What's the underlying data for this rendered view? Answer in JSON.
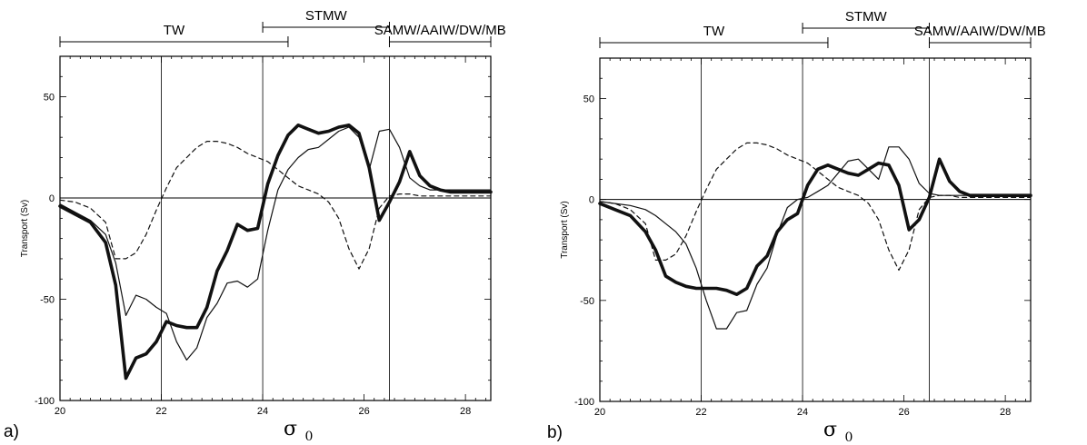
{
  "chart_data": [
    {
      "type": "line",
      "panel_label": "a)",
      "xlabel": "σ",
      "xlabel_sub": "0",
      "ylabel": "Transport (Sv)",
      "xlim": [
        20,
        28.5
      ],
      "ylim": [
        -100,
        70
      ],
      "xticks": [
        20,
        22,
        24,
        26,
        28
      ],
      "yticks": [
        -100,
        -50,
        0,
        50
      ],
      "grid_x": [
        22,
        24,
        26.5
      ],
      "zero_line": true,
      "water_masses": [
        {
          "label": "TW",
          "from": 20,
          "to": 24.5
        },
        {
          "label": "STMW",
          "from": 24,
          "to": 26.5
        },
        {
          "label": "SAMW/AAIW/DW/MB",
          "from": 26.5,
          "to": 28.5
        }
      ],
      "series": [
        {
          "style": "thick",
          "x": [
            20,
            20.3,
            20.6,
            20.9,
            21.1,
            21.3,
            21.5,
            21.7,
            21.9,
            22.1,
            22.3,
            22.5,
            22.7,
            22.9,
            23.1,
            23.3,
            23.5,
            23.7,
            23.9,
            24.1,
            24.3,
            24.5,
            24.7,
            24.9,
            25.1,
            25.3,
            25.5,
            25.7,
            25.9,
            26.1,
            26.3,
            26.5,
            26.7,
            26.9,
            27.1,
            27.3,
            27.5,
            27.7,
            27.9,
            28.1,
            28.3,
            28.5
          ],
          "y": [
            -4,
            -8,
            -12,
            -22,
            -43,
            -89,
            -79,
            -77,
            -71,
            -61,
            -63,
            -64,
            -64,
            -54,
            -36,
            -26,
            -13,
            -16,
            -15,
            7,
            21,
            31,
            36,
            34,
            32,
            33,
            35,
            36,
            32,
            15,
            -11,
            -2,
            8,
            23,
            11,
            6,
            4,
            3,
            3,
            3,
            3,
            3
          ]
        },
        {
          "style": "thin",
          "x": [
            20,
            20.3,
            20.6,
            20.9,
            21.1,
            21.3,
            21.5,
            21.7,
            21.9,
            22.1,
            22.3,
            22.5,
            22.7,
            22.9,
            23.1,
            23.3,
            23.5,
            23.7,
            23.9,
            24.1,
            24.3,
            24.5,
            24.7,
            24.9,
            25.1,
            25.3,
            25.5,
            25.7,
            25.9,
            26.1,
            26.3,
            26.5,
            26.7,
            26.9,
            27.1,
            27.3,
            27.5,
            27.7,
            27.9,
            28.1,
            28.3,
            28.5
          ],
          "y": [
            -3,
            -7,
            -11,
            -18,
            -32,
            -58,
            -48,
            -50,
            -54,
            -57,
            -71,
            -80,
            -74,
            -59,
            -52,
            -42,
            -41,
            -44,
            -40,
            -16,
            4,
            14,
            20,
            24,
            25,
            29,
            33,
            35,
            30,
            14,
            33,
            34,
            25,
            10,
            6,
            4,
            4,
            4,
            4,
            4,
            4,
            4
          ]
        },
        {
          "style": "dashed",
          "x": [
            20,
            20.3,
            20.6,
            20.9,
            21.1,
            21.3,
            21.5,
            21.7,
            21.9,
            22.1,
            22.3,
            22.5,
            22.7,
            22.9,
            23.1,
            23.3,
            23.5,
            23.7,
            23.9,
            24.1,
            24.3,
            24.5,
            24.7,
            24.9,
            25.1,
            25.3,
            25.5,
            25.7,
            25.9,
            26.1,
            26.3,
            26.5,
            26.7,
            26.9,
            27.1,
            27.3,
            27.5,
            27.7,
            27.9,
            28.1,
            28.3,
            28.5
          ],
          "y": [
            -1,
            -2,
            -5,
            -12,
            -30,
            -30,
            -27,
            -18,
            -6,
            5,
            15,
            20,
            25,
            28,
            28,
            27,
            25,
            22,
            20,
            18,
            14,
            10,
            6,
            4,
            2,
            -2,
            -10,
            -25,
            -35,
            -25,
            -5,
            1,
            2,
            2,
            1,
            1,
            1,
            1,
            1,
            1,
            1,
            1
          ]
        }
      ]
    },
    {
      "type": "line",
      "panel_label": "b)",
      "xlabel": "σ",
      "xlabel_sub": "0",
      "ylabel": "Transport (Sv)",
      "xlim": [
        20,
        28.5
      ],
      "ylim": [
        -100,
        70
      ],
      "xticks": [
        20,
        22,
        24,
        26,
        28
      ],
      "yticks": [
        -100,
        -50,
        0,
        50
      ],
      "grid_x": [
        22,
        24,
        26.5
      ],
      "zero_line": true,
      "water_masses": [
        {
          "label": "TW",
          "from": 20,
          "to": 24.5
        },
        {
          "label": "STMW",
          "from": 24,
          "to": 26.5
        },
        {
          "label": "SAMW/AAIW/DW/MB",
          "from": 26.5,
          "to": 28.5
        }
      ],
      "series": [
        {
          "style": "thick",
          "x": [
            20,
            20.3,
            20.6,
            20.9,
            21.1,
            21.3,
            21.5,
            21.7,
            21.9,
            22.1,
            22.3,
            22.5,
            22.7,
            22.9,
            23.1,
            23.3,
            23.5,
            23.7,
            23.9,
            24.1,
            24.3,
            24.5,
            24.7,
            24.9,
            25.1,
            25.3,
            25.5,
            25.7,
            25.9,
            26.1,
            26.3,
            26.5,
            26.7,
            26.9,
            27.1,
            27.3,
            27.5,
            27.7,
            27.9,
            28.1,
            28.3,
            28.5
          ],
          "y": [
            -2,
            -5,
            -8,
            -16,
            -25,
            -38,
            -41,
            -43,
            -44,
            -44,
            -44,
            -45,
            -47,
            -44,
            -33,
            -28,
            -16,
            -10,
            -7,
            7,
            15,
            17,
            15,
            13,
            12,
            15,
            18,
            17,
            7,
            -15,
            -10,
            1,
            20,
            9,
            4,
            2,
            2,
            2,
            2,
            2,
            2,
            2
          ]
        },
        {
          "style": "thin",
          "x": [
            20,
            20.3,
            20.6,
            20.9,
            21.1,
            21.3,
            21.5,
            21.7,
            21.9,
            22.1,
            22.3,
            22.5,
            22.7,
            22.9,
            23.1,
            23.3,
            23.5,
            23.7,
            23.9,
            24.1,
            24.3,
            24.5,
            24.7,
            24.9,
            25.1,
            25.3,
            25.5,
            25.7,
            25.9,
            26.1,
            26.3,
            26.5,
            26.7,
            26.9,
            27.1,
            27.3,
            27.5,
            27.7,
            27.9,
            28.1,
            28.3,
            28.5
          ],
          "y": [
            -1,
            -2,
            -3,
            -5,
            -8,
            -12,
            -16,
            -22,
            -34,
            -50,
            -64,
            -64,
            -56,
            -55,
            -42,
            -34,
            -17,
            -4,
            0,
            1,
            4,
            7,
            13,
            19,
            20,
            15,
            10,
            26,
            26,
            20,
            8,
            3,
            2,
            2,
            2,
            2,
            2,
            2,
            2,
            2,
            2,
            2
          ]
        },
        {
          "style": "dashed",
          "x": [
            20,
            20.3,
            20.6,
            20.9,
            21.1,
            21.3,
            21.5,
            21.7,
            21.9,
            22.1,
            22.3,
            22.5,
            22.7,
            22.9,
            23.1,
            23.3,
            23.5,
            23.7,
            23.9,
            24.1,
            24.3,
            24.5,
            24.7,
            24.9,
            25.1,
            25.3,
            25.5,
            25.7,
            25.9,
            26.1,
            26.3,
            26.5,
            26.7,
            26.9,
            27.1,
            27.3,
            27.5,
            27.7,
            27.9,
            28.1,
            28.3,
            28.5
          ],
          "y": [
            -1,
            -2,
            -5,
            -12,
            -30,
            -30,
            -27,
            -18,
            -6,
            5,
            15,
            20,
            25,
            28,
            28,
            27,
            25,
            22,
            20,
            18,
            14,
            10,
            6,
            4,
            2,
            -2,
            -10,
            -25,
            -35,
            -25,
            -5,
            1,
            2,
            2,
            1,
            1,
            1,
            1,
            1,
            1,
            1,
            1
          ]
        }
      ]
    }
  ]
}
